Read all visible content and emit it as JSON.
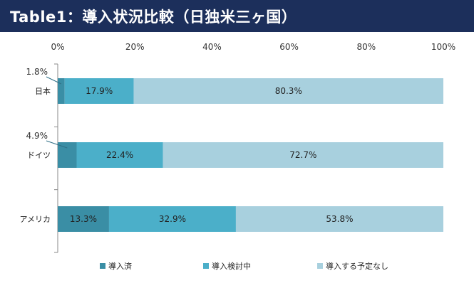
{
  "title": "Table1：導入状況比較（日独米三ヶ国）",
  "colors": {
    "title_bg": "#1c2f5b",
    "title_fg": "#ffffff",
    "series": [
      "#3a8ea5",
      "#4bafc9",
      "#a8d0de"
    ]
  },
  "chart_data": {
    "type": "bar",
    "orientation": "horizontal",
    "stacked": "percent",
    "categories": [
      "日本",
      "ドイツ",
      "アメリカ"
    ],
    "xlim": [
      0,
      100
    ],
    "x_ticks": [
      "0%",
      "20%",
      "40%",
      "60%",
      "80%",
      "100%"
    ],
    "grid": false,
    "legend_position": "bottom",
    "series": [
      {
        "name": "導入済",
        "values": [
          1.8,
          4.9,
          13.3
        ],
        "labels": [
          "1.8%",
          "4.9%",
          "13.3%"
        ]
      },
      {
        "name": "導入検討中",
        "values": [
          17.9,
          22.4,
          32.9
        ],
        "labels": [
          "17.9%",
          "22.4%",
          "32.9%"
        ]
      },
      {
        "name": "導入する予定なし",
        "values": [
          80.3,
          72.7,
          53.8
        ],
        "labels": [
          "80.3%",
          "72.7%",
          "53.8%"
        ]
      }
    ]
  }
}
